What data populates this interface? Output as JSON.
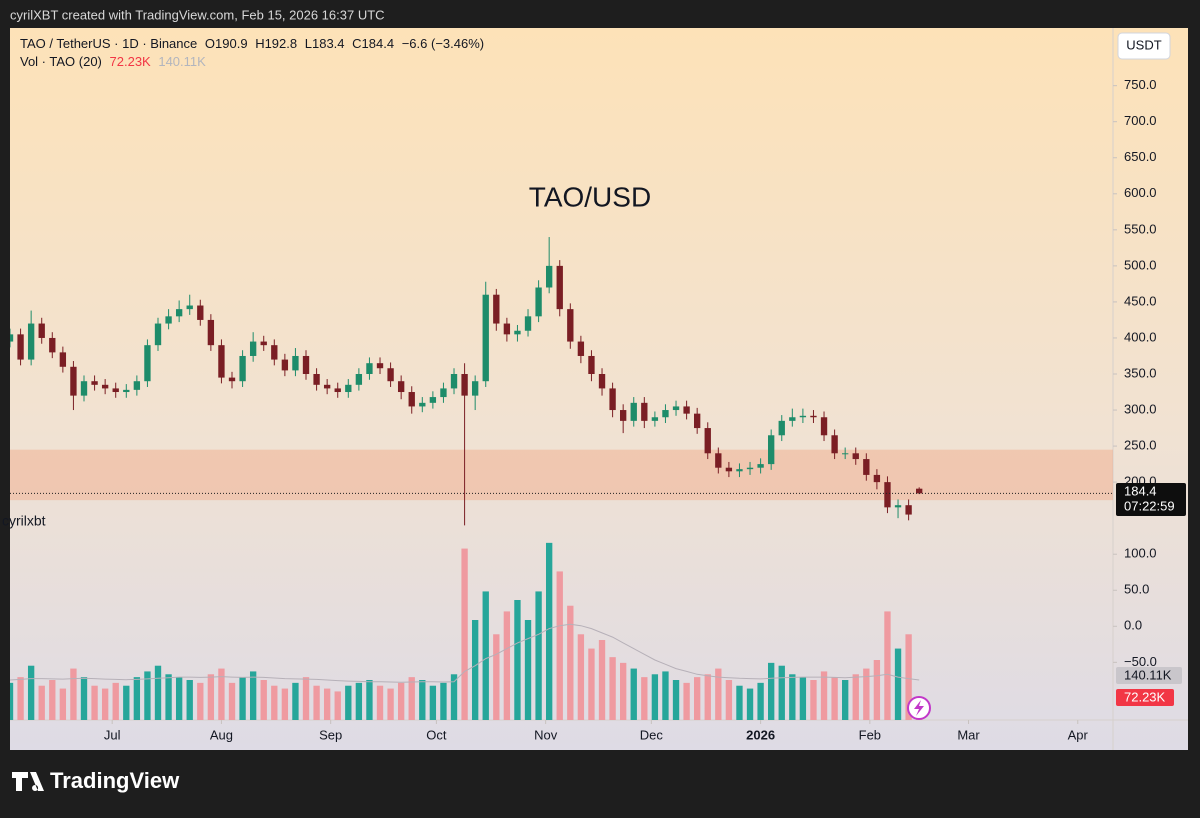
{
  "header": {
    "text": "cyrilXBT created with TradingView.com, Feb 15, 2026 16:37 UTC"
  },
  "chart_data": {
    "type": "candlestick",
    "title": "TAO/USD",
    "symbol": "TAO / TetherUS · 1D · Binance",
    "legend_labels": {
      "open": "O",
      "high": "H",
      "low": "L",
      "close": "C"
    },
    "change": "−6.6 (−3.46%)",
    "currency": "USDT",
    "watermark": "cyrilxbt",
    "countdown": "07:22:59",
    "xlim": [
      1,
      314
    ],
    "xticks": [
      {
        "value": 30,
        "label": "Jul"
      },
      {
        "value": 61,
        "label": "Aug"
      },
      {
        "value": 92,
        "label": "Sep"
      },
      {
        "value": 122,
        "label": "Oct"
      },
      {
        "value": 153,
        "label": "Nov"
      },
      {
        "value": 183,
        "label": "Dec"
      },
      {
        "value": 214,
        "label": "2026"
      },
      {
        "value": 245,
        "label": "Feb"
      },
      {
        "value": 273,
        "label": "Mar"
      },
      {
        "value": 304,
        "label": "Apr"
      }
    ],
    "ylim": [
      -130,
      830
    ],
    "yticks": [
      {
        "value": 750,
        "label": "750.0"
      },
      {
        "value": 700,
        "label": "700.0"
      },
      {
        "value": 650,
        "label": "650.0"
      },
      {
        "value": 600,
        "label": "600.0"
      },
      {
        "value": 550,
        "label": "550.0"
      },
      {
        "value": 500,
        "label": "500.0"
      },
      {
        "value": 450,
        "label": "450.0"
      },
      {
        "value": 400,
        "label": "400.0"
      },
      {
        "value": 350,
        "label": "350.0"
      },
      {
        "value": 300,
        "label": "300.0"
      },
      {
        "value": 250,
        "label": "250.0"
      },
      {
        "value": 200,
        "label": "200.0"
      },
      {
        "value": 100,
        "label": "100.0"
      },
      {
        "value": 50,
        "label": "50.0"
      },
      {
        "value": 0,
        "label": "0.0"
      },
      {
        "value": -50,
        "label": "−50.0"
      }
    ],
    "x": [
      1,
      4,
      7,
      10,
      13,
      16,
      19,
      22,
      25,
      28,
      31,
      34,
      37,
      40,
      43,
      46,
      49,
      52,
      55,
      58,
      61,
      64,
      67,
      70,
      73,
      76,
      79,
      82,
      85,
      88,
      91,
      94,
      97,
      100,
      103,
      106,
      109,
      112,
      115,
      118,
      121,
      124,
      127,
      130,
      133,
      136,
      139,
      142,
      145,
      148,
      151,
      154,
      157,
      160,
      163,
      166,
      169,
      172,
      175,
      178,
      181,
      184,
      187,
      190,
      193,
      196,
      199,
      202,
      205,
      208,
      211,
      214,
      217,
      220,
      223,
      226,
      229,
      232,
      235,
      238,
      241,
      244,
      247,
      250,
      253,
      256,
      259
    ],
    "open": [
      395,
      405,
      370,
      420,
      400,
      380,
      360,
      320,
      340,
      335,
      330,
      325,
      328,
      340,
      390,
      420,
      430,
      440,
      445,
      425,
      390,
      345,
      340,
      375,
      395,
      390,
      370,
      355,
      375,
      350,
      335,
      330,
      325,
      335,
      350,
      365,
      358,
      340,
      325,
      305,
      310,
      318,
      330,
      350,
      320,
      340,
      460,
      420,
      405,
      410,
      430,
      470,
      500,
      440,
      395,
      375,
      350,
      330,
      300,
      285,
      310,
      285,
      290,
      300,
      305,
      295,
      275,
      240,
      220,
      215,
      218,
      220,
      225,
      265,
      285,
      290,
      292,
      290,
      265,
      240,
      240,
      232,
      210,
      200,
      165,
      168,
      190.9
    ],
    "high": [
      413,
      413,
      438,
      428,
      408,
      388,
      368,
      348,
      348,
      343,
      338,
      336,
      348,
      398,
      428,
      440,
      452,
      460,
      453,
      433,
      398,
      353,
      383,
      408,
      403,
      398,
      378,
      386,
      383,
      358,
      343,
      338,
      343,
      358,
      373,
      373,
      366,
      348,
      333,
      318,
      326,
      338,
      358,
      365,
      348,
      478,
      468,
      428,
      418,
      440,
      480,
      540,
      508,
      448,
      403,
      383,
      358,
      338,
      308,
      318,
      318,
      298,
      308,
      313,
      313,
      303,
      283,
      248,
      228,
      226,
      228,
      233,
      273,
      293,
      302,
      302,
      300,
      298,
      273,
      248,
      248,
      240,
      218,
      208,
      176,
      176,
      192.8
    ],
    "low": [
      387,
      362,
      362,
      392,
      372,
      352,
      300,
      312,
      327,
      322,
      317,
      317,
      320,
      332,
      382,
      412,
      422,
      432,
      417,
      382,
      337,
      330,
      332,
      367,
      382,
      362,
      347,
      347,
      342,
      327,
      322,
      317,
      317,
      327,
      342,
      350,
      332,
      315,
      295,
      297,
      302,
      310,
      322,
      140,
      300,
      332,
      410,
      395,
      395,
      402,
      422,
      462,
      430,
      385,
      365,
      340,
      320,
      290,
      268,
      277,
      275,
      277,
      282,
      292,
      287,
      267,
      232,
      212,
      207,
      207,
      210,
      212,
      217,
      257,
      277,
      282,
      282,
      257,
      232,
      232,
      224,
      202,
      190,
      157,
      150,
      147,
      183.4
    ],
    "close": [
      405,
      370,
      420,
      400,
      380,
      360,
      320,
      340,
      335,
      330,
      325,
      328,
      340,
      390,
      420,
      430,
      440,
      445,
      425,
      390,
      345,
      340,
      375,
      395,
      390,
      370,
      355,
      375,
      350,
      335,
      330,
      325,
      335,
      350,
      365,
      358,
      340,
      325,
      305,
      310,
      318,
      330,
      350,
      320,
      340,
      460,
      420,
      405,
      410,
      430,
      470,
      500,
      440,
      395,
      375,
      350,
      330,
      300,
      285,
      310,
      285,
      290,
      300,
      305,
      295,
      275,
      240,
      220,
      215,
      218,
      220,
      225,
      265,
      285,
      290,
      292,
      290,
      265,
      240,
      240,
      232,
      210,
      200,
      165,
      168,
      155,
      184.4
    ],
    "up_color": "#1e8c6a",
    "down_color": "#7a1e24",
    "volume": {
      "name": "Vol · TAO (20)",
      "lim": [
        0,
        700
      ],
      "values": [
        130,
        150,
        190,
        120,
        140,
        110,
        180,
        150,
        120,
        110,
        130,
        120,
        150,
        170,
        190,
        160,
        150,
        140,
        130,
        160,
        180,
        130,
        150,
        170,
        140,
        120,
        110,
        130,
        150,
        120,
        110,
        100,
        120,
        130,
        140,
        120,
        110,
        130,
        150,
        140,
        120,
        130,
        160,
        600,
        350,
        450,
        300,
        380,
        420,
        350,
        450,
        620,
        520,
        400,
        300,
        250,
        280,
        220,
        200,
        180,
        150,
        160,
        170,
        140,
        130,
        150,
        160,
        180,
        140,
        120,
        110,
        130,
        200,
        190,
        160,
        150,
        140,
        170,
        150,
        140,
        160,
        180,
        210,
        380,
        250,
        300,
        72.23
      ],
      "last_label": "72.23K",
      "ma_values": [
        140,
        142,
        145,
        145,
        144,
        143,
        145,
        146,
        145,
        143,
        142,
        141,
        142,
        144,
        146,
        148,
        150,
        150,
        149,
        150,
        152,
        150,
        149,
        150,
        149,
        147,
        145,
        144,
        143,
        142,
        140,
        138,
        136,
        135,
        134,
        134,
        133,
        132,
        133,
        134,
        134,
        133,
        134,
        170,
        190,
        215,
        230,
        250,
        270,
        285,
        300,
        320,
        330,
        335,
        330,
        320,
        305,
        290,
        270,
        250,
        230,
        210,
        195,
        180,
        170,
        160,
        155,
        150,
        148,
        146,
        145,
        144,
        146,
        148,
        149,
        150,
        150,
        150,
        149,
        148,
        150,
        152,
        155,
        160,
        150,
        145,
        140.11
      ],
      "ma_last_label": "140.11K",
      "up_color": "#26a69a",
      "down_color": "#ef9aa0",
      "ma_color": "#b6b0b8"
    },
    "zone": {
      "low": 175,
      "high": 245,
      "color": "#f2a884"
    },
    "last_price_line": true
  },
  "footer": {
    "logo": "TradingView"
  }
}
